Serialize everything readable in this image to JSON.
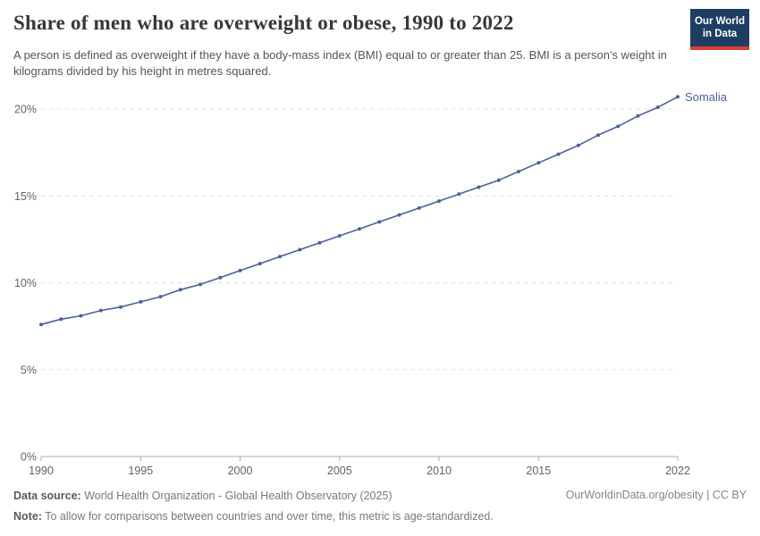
{
  "logo": {
    "line1": "Our World",
    "line2": "in Data",
    "bg_color": "#1d3d63",
    "bar_color": "#dc3e32"
  },
  "chart_data": {
    "type": "line",
    "title": "Share of men who are overweight or obese, 1990 to 2022",
    "subtitle": "A person is defined as overweight if they have a body-mass index (BMI) equal to or greater than 25. BMI is a person's weight in kilograms divided by his height in metres squared.",
    "x": [
      1990,
      1991,
      1992,
      1993,
      1994,
      1995,
      1996,
      1997,
      1998,
      1999,
      2000,
      2001,
      2002,
      2003,
      2004,
      2005,
      2006,
      2007,
      2008,
      2009,
      2010,
      2011,
      2012,
      2013,
      2014,
      2015,
      2016,
      2017,
      2018,
      2019,
      2020,
      2021,
      2022
    ],
    "series": [
      {
        "name": "Somalia",
        "color": "#4a629a",
        "values": [
          7.6,
          7.9,
          8.1,
          8.4,
          8.6,
          8.9,
          9.2,
          9.6,
          9.9,
          10.3,
          10.7,
          11.1,
          11.5,
          11.9,
          12.3,
          12.7,
          13.1,
          13.5,
          13.9,
          14.3,
          14.7,
          15.1,
          15.5,
          15.9,
          16.4,
          16.9,
          17.4,
          17.9,
          18.5,
          19.0,
          19.6,
          20.1,
          20.7
        ]
      }
    ],
    "xlabel": "",
    "ylabel": "",
    "ylim": [
      0,
      21
    ],
    "yticks": [
      0,
      5,
      10,
      15,
      20
    ],
    "ytick_suffix": "%",
    "xticks": [
      1990,
      1995,
      2000,
      2005,
      2010,
      2015,
      2022
    ],
    "grid": "horizontal-dashed",
    "legend": "end-of-line-label",
    "gridline_color": "#dedede",
    "axis_color": "#adadad",
    "tick_label_color": "#636363"
  },
  "footer": {
    "datasource_label": "Data source:",
    "datasource_text": " World Health Organization - Global Health Observatory (2025)",
    "note_label": "Note:",
    "note_text": " To allow for comparisons between countries and over time, this metric is age-standardized.",
    "credit": "OurWorldinData.org/obesity | CC BY"
  }
}
